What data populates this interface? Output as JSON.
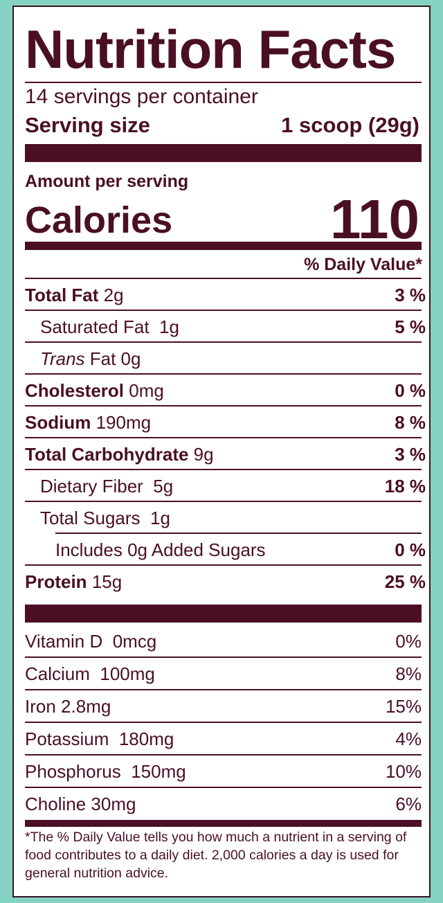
{
  "colors": {
    "ink": "#4a0f25",
    "background": "#84d3c3",
    "label_bg": "#ffffff"
  },
  "title": "Nutrition Facts",
  "servings_per_container": "14 servings per container",
  "serving_size": {
    "label": "Serving size",
    "value": "1 scoop (29g)"
  },
  "amount_per_serving": "Amount per serving",
  "calories": {
    "label": "Calories",
    "value": "110"
  },
  "daily_value_header": "% Daily Value*",
  "nutrients": [
    {
      "name": "Total Fat",
      "amount": "2g",
      "pct": "3 %"
    },
    {
      "name": "Saturated Fat",
      "amount": "1g",
      "pct": "5 %"
    },
    {
      "name": "Trans",
      "amount": "Fat 0g",
      "pct": ""
    },
    {
      "name": "Cholesterol",
      "amount": "0mg",
      "pct": "0 %"
    },
    {
      "name": "Sodium",
      "amount": "190mg",
      "pct": "8 %"
    },
    {
      "name": "Total Carbohydrate",
      "amount": "9g",
      "pct": "3 %"
    },
    {
      "name": "Dietary Fiber",
      "amount": "5g",
      "pct": "18 %"
    },
    {
      "name": "Total Sugars",
      "amount": "1g",
      "pct": ""
    },
    {
      "name": "Includes 0g Added Sugars",
      "amount": "",
      "pct": "0 %"
    },
    {
      "name": "Protein",
      "amount": "15g",
      "pct": "25 %"
    }
  ],
  "vitamins": [
    {
      "name": "Vitamin D",
      "amount": "0mcg",
      "pct": "0%"
    },
    {
      "name": "Calcium",
      "amount": "100mg",
      "pct": "8%"
    },
    {
      "name": "Iron",
      "amount": "2.8mg",
      "pct": "15%"
    },
    {
      "name": "Potassium",
      "amount": "180mg",
      "pct": "4%"
    },
    {
      "name": "Phosphorus",
      "amount": "150mg",
      "pct": "10%"
    },
    {
      "name": "Choline",
      "amount": "30mg",
      "pct": "6%"
    }
  ],
  "footnote": "*The % Daily Value tells you how much a nutrient in a serving of food contributes to a daily diet. 2,000 calories a day is used for general nutrition advice."
}
